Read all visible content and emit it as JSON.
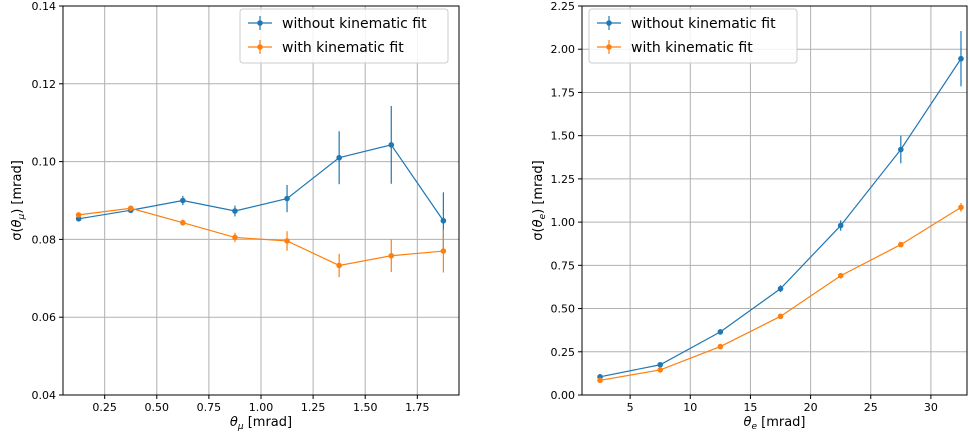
{
  "colors": {
    "series_a": "#1f77b4",
    "series_b": "#ff7f0e"
  },
  "chart_data": [
    {
      "type": "line",
      "title": "",
      "xlabel": "θ_μ [mrad]",
      "ylabel": "σ(θ_μ) [mrad]",
      "xlim": [
        0.05,
        1.95
      ],
      "ylim": [
        0.04,
        0.14
      ],
      "grid": true,
      "legend": "top-right",
      "xticks": [
        0.25,
        0.5,
        0.75,
        1.0,
        1.25,
        1.5,
        1.75
      ],
      "xtick_labels": [
        "0.25",
        "0.50",
        "0.75",
        "1.00",
        "1.25",
        "1.50",
        "1.75"
      ],
      "yticks": [
        0.04,
        0.06,
        0.08,
        0.1,
        0.12,
        0.14
      ],
      "ytick_labels": [
        "0.04",
        "0.06",
        "0.08",
        "0.10",
        "0.12",
        "0.14"
      ],
      "x": [
        0.125,
        0.375,
        0.625,
        0.875,
        1.125,
        1.375,
        1.625,
        1.875
      ],
      "series": [
        {
          "name": "without kinematic fit",
          "values": [
            0.0853,
            0.0875,
            0.09,
            0.0873,
            0.0905,
            0.101,
            0.1043,
            0.0848
          ],
          "errors": [
            0.0005,
            0.0005,
            0.0012,
            0.0014,
            0.0035,
            0.0068,
            0.01,
            0.0073
          ]
        },
        {
          "name": "with kinematic fit",
          "values": [
            0.0863,
            0.088,
            0.0843,
            0.0805,
            0.0796,
            0.0733,
            0.0758,
            0.077
          ],
          "errors": [
            0.0005,
            0.0005,
            0.0008,
            0.0012,
            0.0025,
            0.003,
            0.0042,
            0.0055
          ]
        }
      ]
    },
    {
      "type": "line",
      "title": "",
      "xlabel": "θ_e [mrad]",
      "ylabel": "σ(θ_e) [mrad]",
      "xlim": [
        1.0,
        33.0
      ],
      "ylim": [
        0.0,
        2.25
      ],
      "grid": true,
      "legend": "top-left",
      "xticks": [
        5,
        10,
        15,
        20,
        25,
        30
      ],
      "xtick_labels": [
        "5",
        "10",
        "15",
        "20",
        "25",
        "30"
      ],
      "yticks": [
        0.0,
        0.25,
        0.5,
        0.75,
        1.0,
        1.25,
        1.5,
        1.75,
        2.0,
        2.25
      ],
      "ytick_labels": [
        "0.00",
        "0.25",
        "0.50",
        "0.75",
        "1.00",
        "1.25",
        "1.50",
        "1.75",
        "2.00",
        "2.25"
      ],
      "x": [
        2.5,
        7.5,
        12.5,
        17.5,
        22.5,
        27.5,
        32.5
      ],
      "series": [
        {
          "name": "without kinematic fit",
          "values": [
            0.105,
            0.175,
            0.365,
            0.615,
            0.98,
            1.42,
            1.945
          ],
          "errors": [
            0.005,
            0.01,
            0.015,
            0.02,
            0.03,
            0.08,
            0.16
          ]
        },
        {
          "name": "with kinematic fit",
          "values": [
            0.085,
            0.145,
            0.28,
            0.455,
            0.69,
            0.87,
            1.085
          ],
          "errors": [
            0.004,
            0.006,
            0.008,
            0.01,
            0.012,
            0.015,
            0.025
          ]
        }
      ]
    }
  ]
}
